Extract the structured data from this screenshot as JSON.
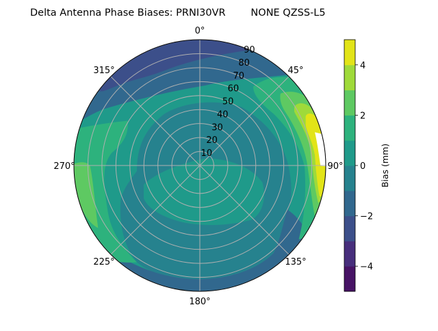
{
  "chart_data": {
    "type": "contour",
    "projection": "polar",
    "title": "Delta Antenna Phase Biases: PRNI30VR        NONE QZSS-L5",
    "theta_direction": "clockwise",
    "theta_zero": "north",
    "theta_ticks": [
      "0°",
      "45°",
      "90°",
      "135°",
      "180°",
      "225°",
      "270°",
      "315°"
    ],
    "r_ticks": [
      "10",
      "20",
      "30",
      "40",
      "50",
      "60",
      "70",
      "80",
      "90"
    ],
    "rlim": [
      0,
      90
    ],
    "grid": true,
    "levels": [
      -5,
      -4,
      -3,
      -2,
      -1,
      0,
      1,
      2,
      3,
      4,
      5
    ],
    "level_colors": [
      "#471365",
      "#472e7c",
      "#3c4f8a",
      "#31688e",
      "#26828e",
      "#1f9a8a",
      "#2db27d",
      "#5ec962",
      "#9fda3a",
      "#e2e418"
    ],
    "colormap": "viridis",
    "colorbar": {
      "label": "Bias (mm)",
      "ticks": [
        "−4",
        "−2",
        "0",
        "2",
        "4"
      ],
      "tick_values": [
        -4,
        -2,
        0,
        2,
        4
      ],
      "range": [
        -5,
        5
      ]
    },
    "regions_description_by_level": {
      "max_above_5": "near east edge (~80° azimuth, 80–90 zenith)",
      "high_3_to_5": "east edge, azimuth 60–110°",
      "low_-3_to_-2": "north-west edge, azimuth 300–20°"
    }
  }
}
